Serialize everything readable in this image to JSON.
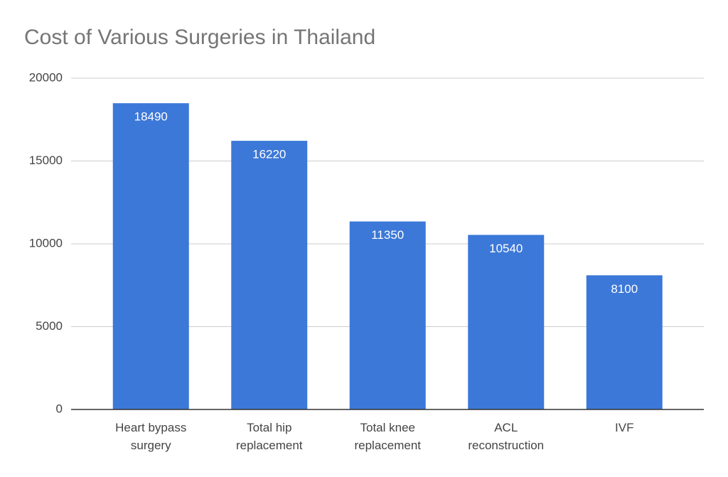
{
  "chart_data": {
    "type": "bar",
    "title": "Cost of Various Surgeries in Thailand",
    "categories": [
      "Heart bypass surgery",
      "Total hip replacement",
      "Total knee replacement",
      "ACL reconstruction",
      "IVF"
    ],
    "values": [
      18490,
      16220,
      11350,
      10540,
      8100
    ],
    "color": "#3c78d8",
    "ylim": [
      0,
      20000
    ],
    "yticks": [
      0,
      5000,
      10000,
      15000,
      20000
    ],
    "grid": true
  }
}
